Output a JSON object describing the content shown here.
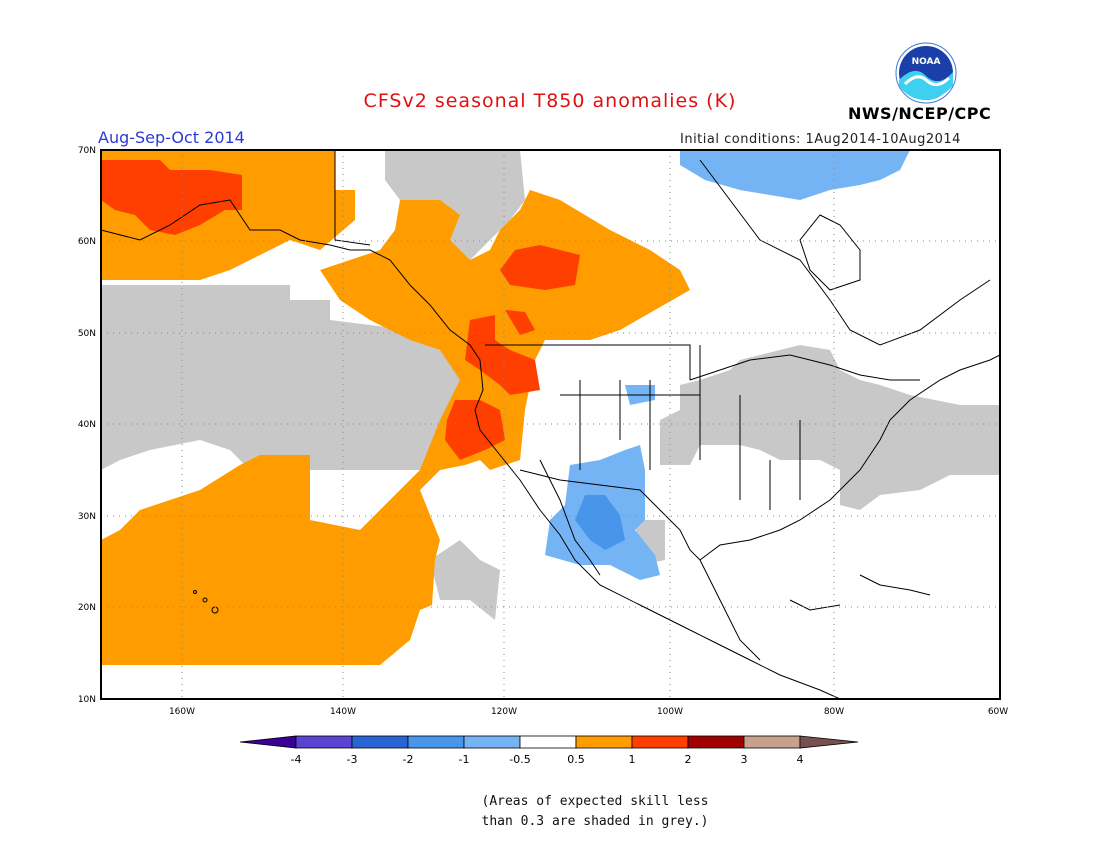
{
  "header": {
    "title": "CFSv2 seasonal T850 anomalies (K)",
    "season": "Aug-Sep-Oct 2014",
    "initial_conditions": "Initial conditions: 1Aug2014-10Aug2014",
    "agency": "NWS/NCEP/CPC",
    "logo_text": "NOAA"
  },
  "map": {
    "lon_range": [
      -172,
      -60
    ],
    "lat_range": [
      10,
      70
    ],
    "lon_labels": [
      "160W",
      "140W",
      "120W",
      "100W",
      "80W",
      "60W"
    ],
    "lat_labels": [
      "70N",
      "60N",
      "50N",
      "40N",
      "30N",
      "20N",
      "10N"
    ],
    "colors": {
      "warm_0_5_1": "#ff9c00",
      "warm_1_2": "#ff3f00",
      "cool_minus1_minus0_5": "#74b4f5",
      "cool_minus2_minus1": "#4896ea",
      "low_skill_grey": "#c8c8c8"
    }
  },
  "colorbar": {
    "labels": [
      "-4",
      "-3",
      "-2",
      "-1",
      "-0.5",
      "0.5",
      "1",
      "2",
      "3",
      "4"
    ],
    "colors": [
      "#3c0096",
      "#5a44d2",
      "#2864d2",
      "#4896ea",
      "#74b4f5",
      "#ffffff",
      "#ff9c00",
      "#ff3f00",
      "#a00000",
      "#c8a08c",
      "#785050"
    ]
  },
  "note": {
    "line1": "(Areas of expected skill less",
    "line2": "than 0.3 are shaded in grey.)"
  }
}
